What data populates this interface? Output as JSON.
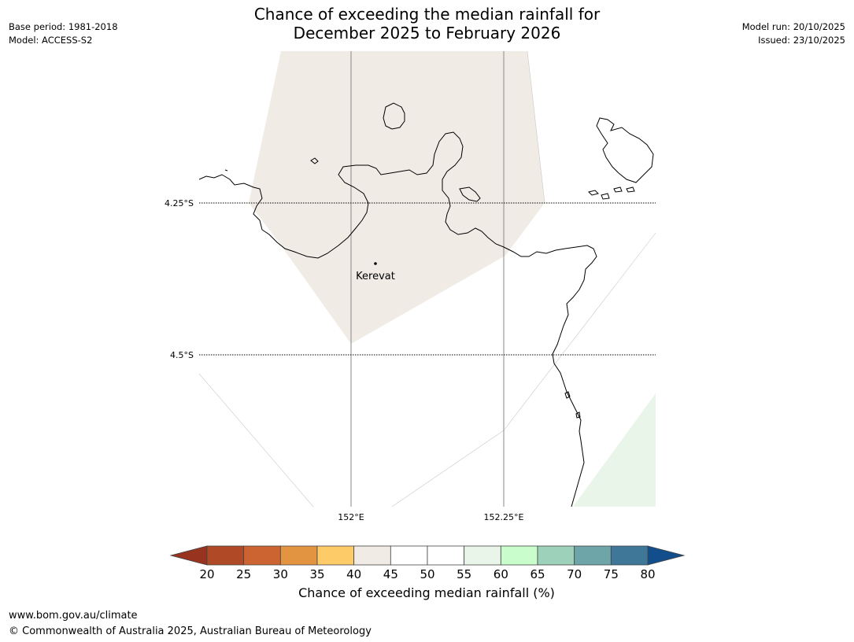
{
  "title_line1": "Chance of exceeding the median rainfall for",
  "title_line2": "December 2025 to February 2026",
  "meta_left": {
    "base_period": "Base period: 1981-2018",
    "model": "Model: ACCESS-S2"
  },
  "meta_right": {
    "model_run": "Model run: 20/10/2025",
    "issued": "Issued: 23/10/2025"
  },
  "map": {
    "lat_labels": [
      "4.25°S",
      "4.5°S"
    ],
    "lon_labels": [
      "152°E",
      "152.25°E"
    ],
    "place_label": "Kerevat",
    "region_colors": {
      "band_40_45": "#f0ebe5",
      "band_55_60": "#eaf5ea"
    },
    "coast_color": "#000000"
  },
  "colorbar": {
    "title": "Chance of exceeding median rainfall (%)",
    "ticks": [
      "20",
      "25",
      "30",
      "35",
      "40",
      "45",
      "50",
      "55",
      "60",
      "65",
      "70",
      "75",
      "80"
    ],
    "under_color": "#983320",
    "over_color": "#124e8c",
    "colors": [
      "#b04a26",
      "#cc6431",
      "#e39441",
      "#fdcb68",
      "#f0ebe5",
      "#ffffff",
      "#ffffff",
      "#eaf5ea",
      "#c9fdcb",
      "#9ed1b9",
      "#6da5a8",
      "#3f7798"
    ]
  },
  "footer": {
    "url": "www.bom.gov.au/climate",
    "copyright": "© Commonwealth of Australia 2025, Australian Bureau of Meteorology"
  }
}
